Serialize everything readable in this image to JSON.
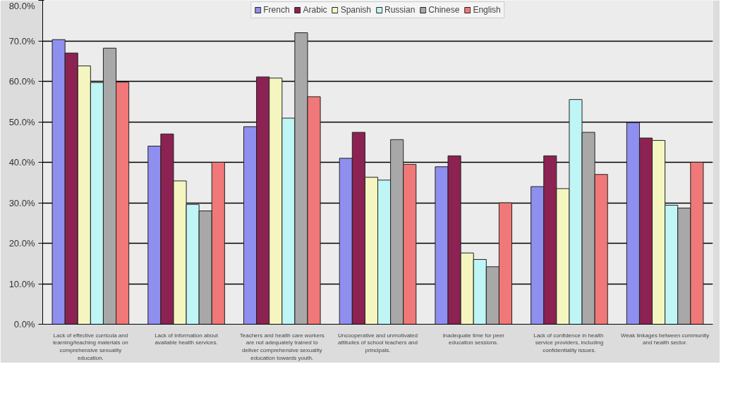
{
  "chart_data": {
    "type": "bar",
    "categories": [
      "Lack of effective curricula and learning/teaching materials on comprehensive sexuality education.",
      "Lack of information about available health services.",
      "Teachers and health care workers are not adequately trained to deliver comprehensive sexuality education towards youth.",
      "Uncooperative and unmotivated attitudes of school teachers and principals.",
      "Inadequate time for peer education sessions.",
      "Lack of confidence in  health service providers, including confidentiality issues.",
      "Weak linkages between community and health sector."
    ],
    "series": [
      {
        "name": "French",
        "color": "#8f8fef",
        "values": [
          70.3,
          44,
          48.8,
          41,
          38.9,
          34,
          49.8
        ]
      },
      {
        "name": "Arabic",
        "color": "#8b2252",
        "values": [
          67,
          47,
          61.1,
          47.4,
          41.6,
          41.6,
          46
        ]
      },
      {
        "name": "Spanish",
        "color": "#f5f5c0",
        "values": [
          63.8,
          35.4,
          60.8,
          36.3,
          17.6,
          33.5,
          45.4
        ]
      },
      {
        "name": "Russian",
        "color": "#c0f5f5",
        "values": [
          59.7,
          29.6,
          50.9,
          35.6,
          16,
          55.5,
          29.4
        ]
      },
      {
        "name": "Chinese",
        "color": "#a8a8a8",
        "values": [
          68.2,
          28,
          72,
          45.6,
          14.2,
          47.4,
          28.7
        ]
      },
      {
        "name": "English",
        "color": "#f07878",
        "values": [
          59.8,
          40,
          56.2,
          39.5,
          30,
          37,
          40
        ]
      }
    ],
    "ylim": [
      0,
      80
    ],
    "yticks": [
      {
        "value": 0,
        "label": "0.0%"
      },
      {
        "value": 10,
        "label": "10.0%"
      },
      {
        "value": 20,
        "label": "20.0%"
      },
      {
        "value": 30,
        "label": "30.0%"
      },
      {
        "value": 40,
        "label": "40.0%"
      },
      {
        "value": 50,
        "label": "50.0%"
      },
      {
        "value": 60,
        "label": "60.0%"
      },
      {
        "value": 70,
        "label": "70.0%"
      },
      {
        "value": 80,
        "label": "80.0%"
      }
    ],
    "grid": "y",
    "legend": "top"
  }
}
